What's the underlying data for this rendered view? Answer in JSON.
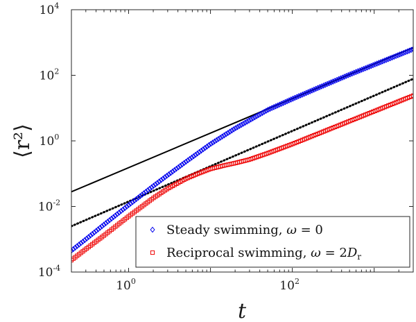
{
  "chart_data": {
    "type": "scatter",
    "xscale": "log",
    "yscale": "log",
    "xlim": [
      0.2,
      3000
    ],
    "ylim": [
      0.0001,
      10000
    ],
    "grid": false,
    "legend_position": "bottom-right",
    "xlabel": "t",
    "ylabel": "⟨r²⟩",
    "xticks": [
      {
        "value": 1,
        "base": "10",
        "exp": "0"
      },
      {
        "value": 100,
        "base": "10",
        "exp": "2"
      }
    ],
    "yticks": [
      {
        "value": 0.0001,
        "base": "10",
        "exp": "-4"
      },
      {
        "value": 0.01,
        "base": "10",
        "exp": "-2"
      },
      {
        "value": 1,
        "base": "10",
        "exp": "0"
      },
      {
        "value": 100,
        "base": "10",
        "exp": "2"
      },
      {
        "value": 10000,
        "base": "10",
        "exp": "4"
      }
    ],
    "series": [
      {
        "name": "Steady swimming, ω = 0",
        "marker": "diamond",
        "color": "#0000ee",
        "x": [
          0.2,
          0.3,
          0.5,
          1,
          2,
          3,
          5,
          10,
          20,
          50,
          100,
          200,
          500,
          1000,
          3000
        ],
        "y": [
          0.00045,
          0.001,
          0.0028,
          0.011,
          0.042,
          0.09,
          0.23,
          0.8,
          2.4,
          8.8,
          19,
          40,
          105,
          210,
          630
        ]
      },
      {
        "name": "Reciprocal swimming, ω = 2D_r",
        "marker": "square",
        "color": "#ee0000",
        "x": [
          0.2,
          0.3,
          0.5,
          1,
          2,
          3,
          5,
          7,
          10,
          15,
          20,
          30,
          50,
          100,
          200,
          500,
          1000,
          3000
        ],
        "y": [
          0.00023,
          0.0005,
          0.0013,
          0.005,
          0.018,
          0.035,
          0.07,
          0.1,
          0.14,
          0.18,
          0.21,
          0.27,
          0.42,
          0.8,
          1.6,
          4,
          8,
          24
        ]
      }
    ],
    "reference_lines": [
      {
        "style": "solid",
        "color": "#000000",
        "x": [
          0.2,
          3000
        ],
        "y": [
          0.028,
          700
        ]
      },
      {
        "style": "dotted",
        "color": "#000000",
        "x": [
          0.2,
          3000
        ],
        "y": [
          0.0025,
          78
        ]
      }
    ]
  },
  "legend": {
    "steady": {
      "text": "Steady swimming, ",
      "symbol": "ω",
      "rest": " = 0"
    },
    "reciprocal": {
      "text": "Reciprocal swimming, ",
      "symbol": "ω",
      "rest": " = 2",
      "d": "D",
      "sub": "r"
    }
  }
}
